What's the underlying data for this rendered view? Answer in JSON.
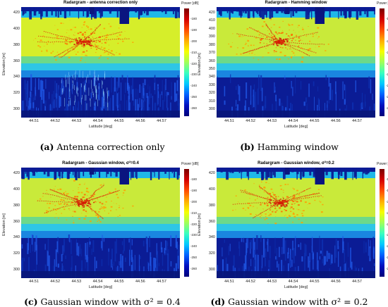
{
  "panels": [
    {
      "title": "Radargram - antenna correction only",
      "letter": "(a)",
      "caption": "Antenna correction only",
      "yticks": [
        "420",
        "400",
        "380",
        "360",
        "340",
        "320",
        "300"
      ],
      "noise": "high"
    },
    {
      "title": "Radargram - Hamming window",
      "letter": "(b)",
      "caption": "Hamming window",
      "yticks": [
        "420",
        "410",
        "400",
        "390",
        "380",
        "370",
        "360",
        "350",
        "340",
        "330",
        "320",
        "310",
        "300"
      ],
      "noise": "low"
    },
    {
      "title": "Radargram - Gaussian window, σ²=0.4",
      "letter": "(c)",
      "caption": "Gaussian window with σ² = 0.4",
      "yticks": [
        "420",
        "400",
        "380",
        "360",
        "340",
        "320",
        "300"
      ],
      "noise": "mid"
    },
    {
      "title": "Radargram - Gaussian window, σ²=0.2",
      "letter": "(d)",
      "caption": "Gaussian window with σ² = 0.2",
      "yticks": [
        "420",
        "400",
        "380",
        "360",
        "340",
        "320",
        "300"
      ],
      "noise": "mid"
    }
  ],
  "xticks": [
    "44.51",
    "44.52",
    "44.53",
    "44.54",
    "44.55",
    "44.56",
    "44.57"
  ],
  "xlabel": "Latitude [deg]",
  "ylabel": "Elevation [m]",
  "colorbar": {
    "label": "Power [dB]",
    "ticks": [
      "-180",
      "-190",
      "-200",
      "-210",
      "-220",
      "-230",
      "-240",
      "-250",
      "-260"
    ],
    "colors": [
      "#7a0000",
      "#ff4a00",
      "#f6ff00",
      "#38ffc0",
      "#00c8ff",
      "#0060ff",
      "#00007a"
    ]
  }
}
